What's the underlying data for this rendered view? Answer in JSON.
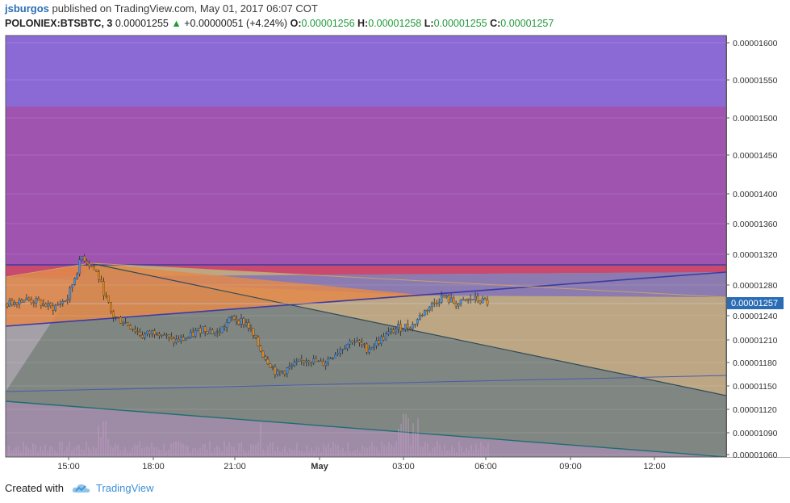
{
  "header": {
    "user": "jsburgos",
    "published": "published on TradingView.com, May 01, 2017 06:07 COT",
    "symbol": "POLONIEX:BTSBTC, 3",
    "last": "0.00001255",
    "up_arrow": "▲",
    "change": "+0.00000051 (+4.24%)",
    "o_label": "O:",
    "o_value": "0.00001256",
    "h_label": "H:",
    "h_value": "0.00001258",
    "l_label": "L:",
    "l_value": "0.00001255",
    "c_label": "C:",
    "c_value": "0.00001257"
  },
  "footer": {
    "created_with": "Created with",
    "brand": "TradingView"
  },
  "colors": {
    "up_candle": "#4a90d9",
    "down_candle": "#e0881e",
    "zone_top": "#8c6ad6",
    "zone_mid": "#9f55b0",
    "zone_red": "#c94a6e",
    "gray_fill": "#7d8580",
    "tan_fill": "#bca683",
    "orange_fill": "#e38a4a",
    "price_label": "#2b6db5"
  },
  "chart_data": {
    "type": "candlestick",
    "price_axis_ticks": [
      "0.00001600",
      "0.00001550",
      "0.00001500",
      "0.00001450",
      "0.00001400",
      "0.00001360",
      "0.00001320",
      "0.00001280",
      "0.00001240",
      "0.00001210",
      "0.00001180",
      "0.00001150",
      "0.00001120",
      "0.00001090",
      "0.00001060"
    ],
    "time_axis_ticks": [
      "15:00",
      "18:00",
      "21:00",
      "May",
      "03:00",
      "06:00",
      "09:00",
      "12:00"
    ],
    "current_price": "0.00001257",
    "grid": true,
    "series": [
      {
        "name": "BTSBTC 3m",
        "approx_closes": [
          1.255e-05,
          1.262e-05,
          1.258e-05,
          1.25e-05,
          1.262e-05,
          1.318e-05,
          1.295e-05,
          1.24e-05,
          1.23e-05,
          1.215e-05,
          1.222e-05,
          1.208e-05,
          1.212e-05,
          1.225e-05,
          1.218e-05,
          1.238e-05,
          1.23e-05,
          1.192e-05,
          1.165e-05,
          1.175e-05,
          1.185e-05,
          1.178e-05,
          1.195e-05,
          1.21e-05,
          1.198e-05,
          1.212e-05,
          1.225e-05,
          1.228e-05,
          1.25e-05,
          1.265e-05,
          1.255e-05,
          1.262e-05,
          1.257e-05
        ]
      }
    ]
  }
}
